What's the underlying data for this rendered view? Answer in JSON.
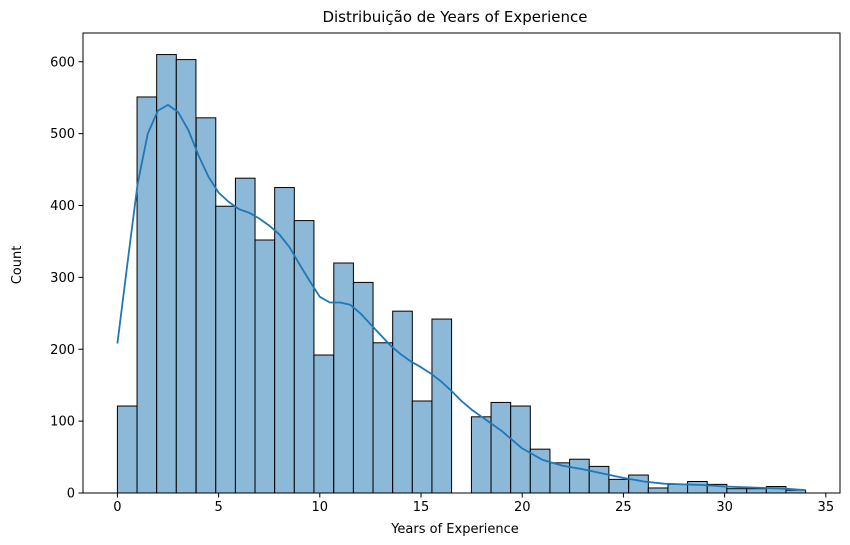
{
  "chart_data": {
    "type": "bar",
    "title": "Distribuição de Years of Experience",
    "xlabel": "Years of Experience",
    "ylabel": "Count",
    "xlim": [
      -1.7,
      35.7
    ],
    "ylim": [
      0,
      640
    ],
    "xticks": [
      0,
      5,
      10,
      15,
      20,
      25,
      30,
      35
    ],
    "yticks": [
      0,
      100,
      200,
      300,
      400,
      500,
      600
    ],
    "bin_width": 0.97,
    "bins": [
      {
        "start": 0.0,
        "count": 121
      },
      {
        "start": 0.97,
        "count": 551
      },
      {
        "start": 1.94,
        "count": 610
      },
      {
        "start": 2.91,
        "count": 603
      },
      {
        "start": 3.89,
        "count": 522
      },
      {
        "start": 4.86,
        "count": 399
      },
      {
        "start": 5.83,
        "count": 438
      },
      {
        "start": 6.8,
        "count": 352
      },
      {
        "start": 7.77,
        "count": 425
      },
      {
        "start": 8.74,
        "count": 379
      },
      {
        "start": 9.71,
        "count": 192
      },
      {
        "start": 10.69,
        "count": 320
      },
      {
        "start": 11.66,
        "count": 293
      },
      {
        "start": 12.63,
        "count": 209
      },
      {
        "start": 13.6,
        "count": 253
      },
      {
        "start": 14.57,
        "count": 128
      },
      {
        "start": 15.54,
        "count": 242
      },
      {
        "start": 16.51,
        "count": 0
      },
      {
        "start": 17.49,
        "count": 106
      },
      {
        "start": 18.46,
        "count": 126
      },
      {
        "start": 19.43,
        "count": 121
      },
      {
        "start": 20.4,
        "count": 61
      },
      {
        "start": 21.37,
        "count": 42
      },
      {
        "start": 22.34,
        "count": 47
      },
      {
        "start": 23.31,
        "count": 37
      },
      {
        "start": 24.29,
        "count": 19
      },
      {
        "start": 25.26,
        "count": 25
      },
      {
        "start": 26.23,
        "count": 7
      },
      {
        "start": 27.2,
        "count": 12
      },
      {
        "start": 28.17,
        "count": 16
      },
      {
        "start": 29.14,
        "count": 12
      },
      {
        "start": 30.11,
        "count": 6
      },
      {
        "start": 31.09,
        "count": 6
      },
      {
        "start": 32.06,
        "count": 9
      },
      {
        "start": 33.03,
        "count": 4
      }
    ],
    "kde": {
      "x": [
        0,
        0.5,
        1,
        1.5,
        2,
        2.5,
        3,
        3.5,
        4,
        4.5,
        5,
        5.5,
        6,
        6.5,
        7,
        7.5,
        8,
        8.5,
        9,
        9.5,
        10,
        10.5,
        11,
        11.5,
        12,
        12.5,
        13,
        13.5,
        14,
        14.5,
        15,
        15.5,
        16,
        16.5,
        17,
        17.5,
        18,
        18.5,
        19,
        19.5,
        20,
        21,
        22,
        23,
        24,
        25,
        26,
        27,
        28,
        29,
        30,
        31,
        32,
        33,
        34
      ],
      "y": [
        208,
        320,
        430,
        500,
        532,
        540,
        530,
        505,
        470,
        440,
        418,
        405,
        395,
        390,
        382,
        372,
        360,
        342,
        318,
        295,
        273,
        265,
        265,
        262,
        250,
        235,
        220,
        205,
        193,
        183,
        175,
        166,
        155,
        142,
        128,
        116,
        106,
        96,
        86,
        74,
        62,
        46,
        38,
        33,
        27,
        21,
        16,
        13,
        12,
        11,
        9,
        8,
        7,
        6,
        4
      ]
    },
    "colors": {
      "bar_fill": "#8db9d9",
      "bar_edge": "#000000",
      "kde_line": "#1f77b4"
    },
    "grid": false,
    "legend": false
  }
}
